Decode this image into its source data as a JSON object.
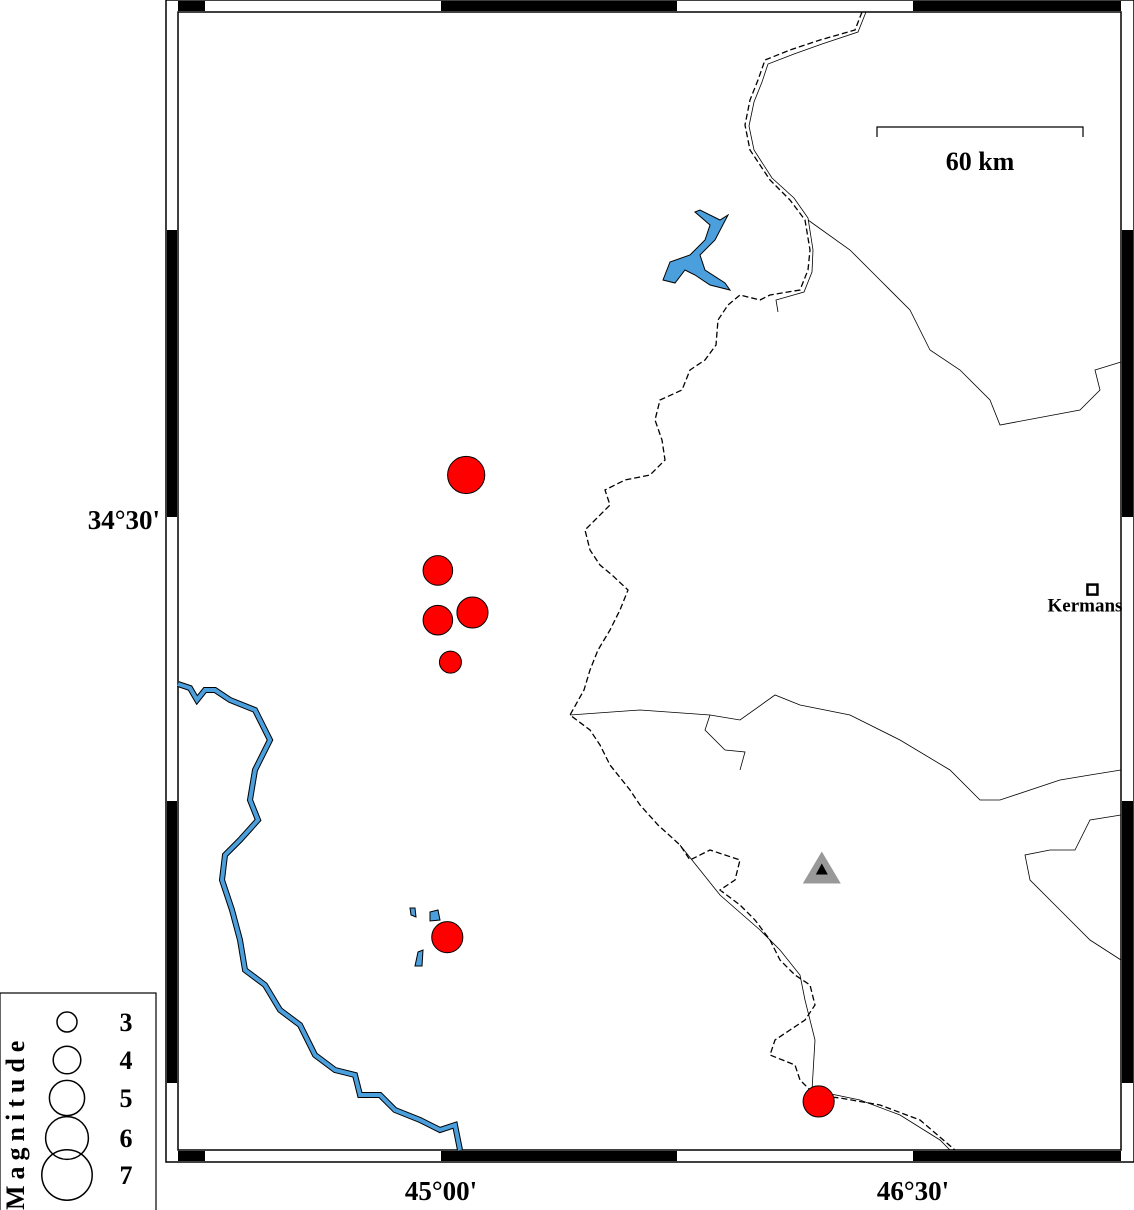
{
  "map": {
    "axes": {
      "x_ticks": [
        {
          "lon": 45.0,
          "label": "45°00'"
        },
        {
          "lon": 46.5,
          "label": "46°30'"
        }
      ],
      "y_ticks": [
        {
          "lat": 34.5,
          "label": "34°30'"
        }
      ]
    },
    "scale_bar": {
      "label": "60 km"
    },
    "cities": [
      {
        "name": "Kermans",
        "lon": 47.07,
        "lat": 34.31
      }
    ],
    "stations": [
      {
        "lon": 46.21,
        "lat": 33.58,
        "color": "#999999"
      }
    ],
    "events": [
      {
        "lon": 45.08,
        "lat": 34.61,
        "magnitude": 5.0
      },
      {
        "lon": 44.99,
        "lat": 34.36,
        "magnitude": 4.0
      },
      {
        "lon": 44.99,
        "lat": 34.23,
        "magnitude": 4.0
      },
      {
        "lon": 45.1,
        "lat": 34.25,
        "magnitude": 4.2
      },
      {
        "lon": 45.03,
        "lat": 34.12,
        "magnitude": 3.0
      },
      {
        "lon": 45.02,
        "lat": 33.4,
        "magnitude": 4.2
      },
      {
        "lon": 46.2,
        "lat": 32.97,
        "magnitude": 4.2
      }
    ],
    "event_color": "#ff0000",
    "water_color": "#4a9fdc"
  },
  "legend": {
    "title": "Magnitude",
    "items": [
      {
        "label": "3",
        "magnitude": 3
      },
      {
        "label": "4",
        "magnitude": 4
      },
      {
        "label": "5",
        "magnitude": 5
      },
      {
        "label": "6",
        "magnitude": 6
      },
      {
        "label": "7",
        "magnitude": 7
      }
    ]
  }
}
